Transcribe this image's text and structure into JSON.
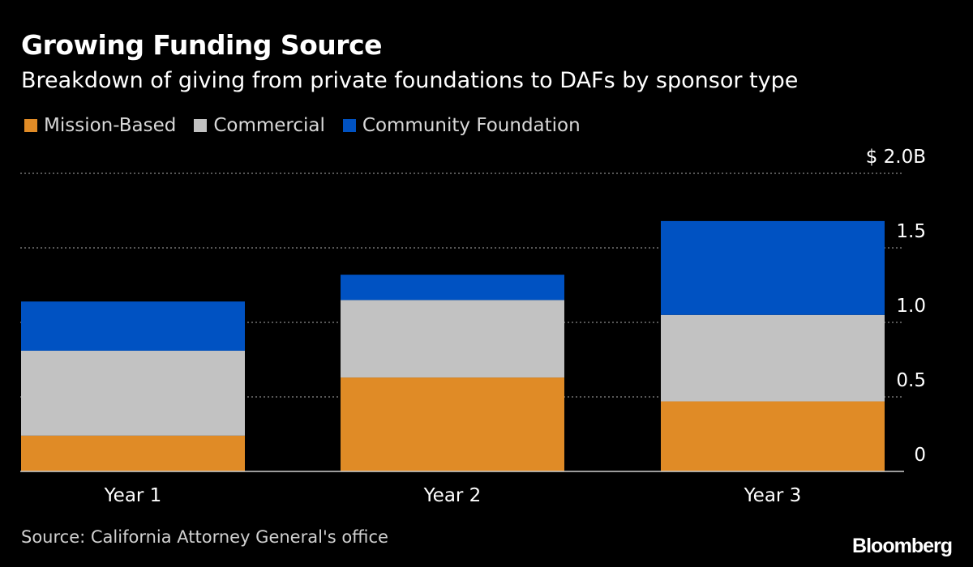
{
  "chart_data": {
    "type": "bar",
    "stacked": true,
    "title": "Growing Funding Source",
    "subtitle": "Breakdown of giving from private foundations to DAFs by sponsor type",
    "categories": [
      "Year 1",
      "Year 2",
      "Year 3"
    ],
    "series": [
      {
        "name": "Mission-Based",
        "color": "#e08b26",
        "values": [
          0.24,
          0.63,
          0.47
        ]
      },
      {
        "name": "Commercial",
        "color": "#c2c2c2",
        "values": [
          0.57,
          0.52,
          0.58
        ]
      },
      {
        "name": "Community Foundation",
        "color": "#0052c2",
        "values": [
          0.33,
          0.17,
          0.63
        ]
      }
    ],
    "ylim": [
      0,
      2.0
    ],
    "yticks": [
      {
        "value": 0,
        "label": "0"
      },
      {
        "value": 0.5,
        "label": "0.5"
      },
      {
        "value": 1.0,
        "label": "1.0"
      },
      {
        "value": 1.5,
        "label": "1.5"
      },
      {
        "value": 2.0,
        "label": "$ 2.0B"
      }
    ],
    "xlabel": "",
    "ylabel": "",
    "grid": true,
    "legend_position": "top-left",
    "source": "Source: California Attorney General's office",
    "brand": "Bloomberg"
  }
}
